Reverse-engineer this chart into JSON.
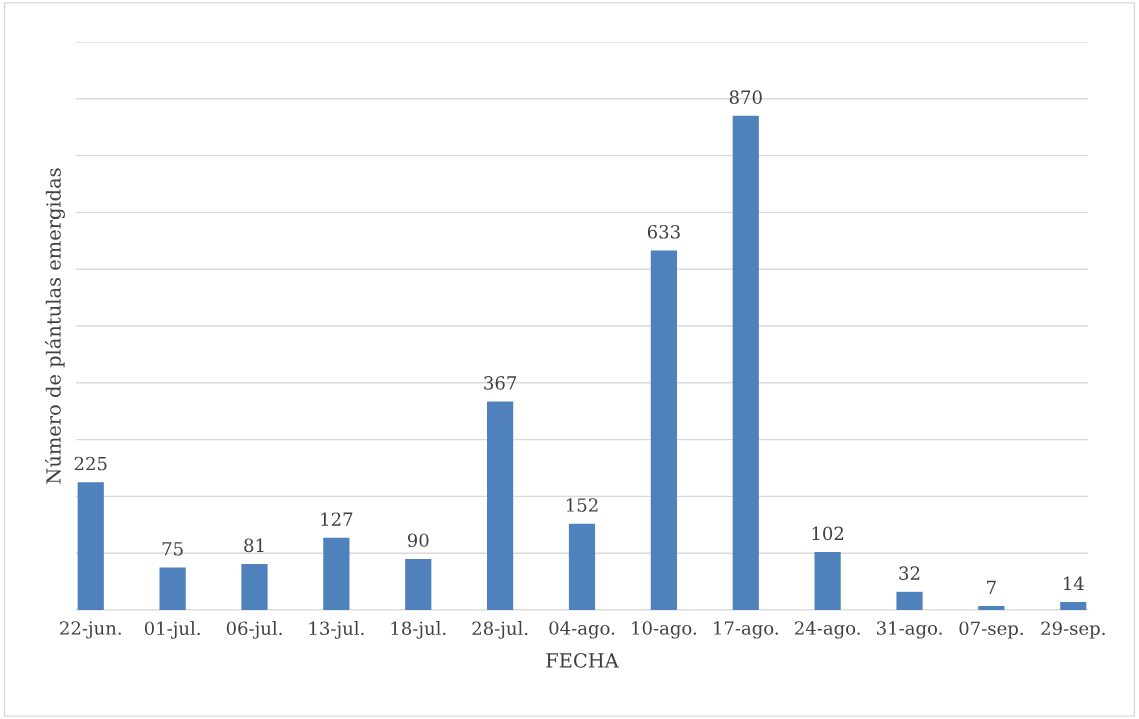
{
  "chart_data": {
    "type": "bar",
    "xlabel": "FECHA",
    "ylabel": "Número de plántulas emergidas",
    "categories": [
      "22-jun.",
      "01-jul.",
      "06-jul.",
      "13-jul.",
      "18-jul.",
      "28-jul.",
      "04-ago.",
      "10-ago.",
      "17-ago.",
      "24-ago.",
      "31-ago.",
      "07-sep.",
      "29-sep."
    ],
    "values": [
      225,
      75,
      81,
      127,
      90,
      367,
      152,
      633,
      870,
      102,
      32,
      7,
      14
    ],
    "color": "#4f81bd",
    "data_labels": true,
    "grid": "y",
    "tick_labels": "x",
    "ylim": [
      0,
      1000
    ],
    "yticks": [
      {
        "value": 0,
        "label": null
      },
      {
        "value": 100,
        "label": null
      },
      {
        "value": 200,
        "label": null
      },
      {
        "value": 300,
        "label": null
      },
      {
        "value": 400,
        "label": null
      },
      {
        "value": 500,
        "label": null
      },
      {
        "value": 600,
        "label": null
      },
      {
        "value": 700,
        "label": null
      },
      {
        "value": 800,
        "label": null
      },
      {
        "value": 900,
        "label": null
      },
      {
        "value": 1000,
        "label": null
      }
    ]
  }
}
